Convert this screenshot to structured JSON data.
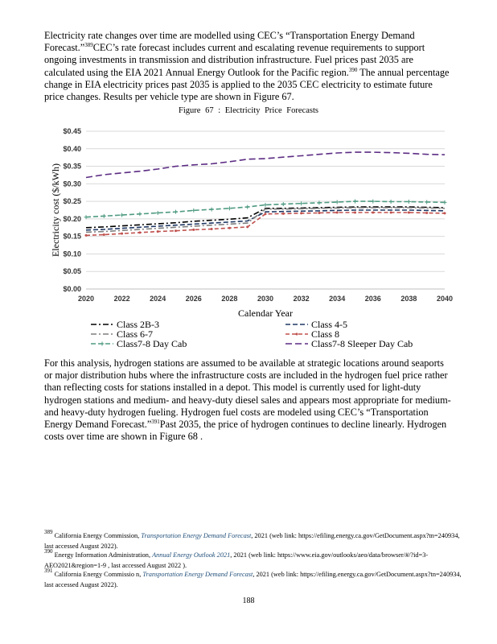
{
  "para1": {
    "t1": "Electricity rate changes over time are modelled using CEC’s “Transportation Energy Demand Forecast.”",
    "ref1": "389",
    "t2": "CEC’s rate forecast includes current and escalating revenue requirements to support ongoing investments in transmission and distribution infrastructure. Fuel prices past 2035 are calculated using the EIA 2021 Annual Energy Outlook for the Pacific region.",
    "ref2": "390",
    "t3": " The annual percentage change in EIA electricity prices past 2035 is applied to the 2035 CEC electricity to estimate future price changes. Results per vehicle type are shown in Figure 67."
  },
  "figure_caption": "Figure 67 : Electricity Price Forecasts",
  "chart_data": {
    "type": "line",
    "title": "",
    "xlabel": "Calendar Year",
    "ylabel": "Electricity cost ($/kWh)",
    "xlim": [
      2020,
      2040
    ],
    "ylim": [
      0,
      0.45
    ],
    "x_ticks": [
      "2020",
      "2022",
      "2024",
      "2026",
      "2028",
      "2030",
      "2032",
      "2034",
      "2036",
      "2038",
      "2040"
    ],
    "y_ticks": [
      "$0.00",
      "$0.05",
      "$0.10",
      "$0.15",
      "$0.20",
      "$0.25",
      "$0.30",
      "$0.35",
      "$0.40",
      "$0.45"
    ],
    "x": [
      2020,
      2021,
      2022,
      2023,
      2024,
      2025,
      2026,
      2027,
      2028,
      2029,
      2030,
      2031,
      2032,
      2033,
      2034,
      2035,
      2036,
      2037,
      2038,
      2039,
      2040
    ],
    "grid": "horizontal",
    "legend_position": "bottom",
    "series": [
      {
        "name": "Class 2B-3",
        "color": "#000000",
        "dash": "7 3 2 3",
        "marker": "none",
        "values": [
          0.175,
          0.177,
          0.18,
          0.183,
          0.186,
          0.189,
          0.193,
          0.196,
          0.199,
          0.203,
          0.23,
          0.23,
          0.231,
          0.232,
          0.233,
          0.234,
          0.234,
          0.234,
          0.234,
          0.233,
          0.232
        ]
      },
      {
        "name": "Class 4-5",
        "color": "#1f3864",
        "dash": "6 3",
        "marker": "none",
        "values": [
          0.168,
          0.17,
          0.173,
          0.176,
          0.179,
          0.182,
          0.185,
          0.188,
          0.191,
          0.194,
          0.22,
          0.221,
          0.222,
          0.223,
          0.224,
          0.225,
          0.225,
          0.225,
          0.225,
          0.224,
          0.223
        ]
      },
      {
        "name": "Class 6-7",
        "color": "#7f7f7f",
        "dash": "7 3 2 3",
        "marker": "none",
        "values": [
          0.162,
          0.164,
          0.167,
          0.17,
          0.173,
          0.176,
          0.179,
          0.182,
          0.185,
          0.188,
          0.228,
          0.228,
          0.229,
          0.23,
          0.231,
          0.232,
          0.232,
          0.232,
          0.232,
          0.231,
          0.23
        ]
      },
      {
        "name": "Class 8",
        "color": "#c0504d",
        "dash": "5 3",
        "marker": "dot",
        "values": [
          0.153,
          0.155,
          0.158,
          0.161,
          0.164,
          0.166,
          0.169,
          0.171,
          0.174,
          0.177,
          0.214,
          0.215,
          0.216,
          0.217,
          0.218,
          0.218,
          0.218,
          0.218,
          0.218,
          0.217,
          0.216
        ]
      },
      {
        "name": "Class7-8 Day Cab",
        "color": "#4e9a82",
        "dash": "6 3",
        "marker": "plus",
        "values": [
          0.205,
          0.208,
          0.211,
          0.214,
          0.217,
          0.22,
          0.224,
          0.227,
          0.23,
          0.234,
          0.24,
          0.242,
          0.244,
          0.246,
          0.248,
          0.25,
          0.25,
          0.249,
          0.249,
          0.248,
          0.247
        ]
      },
      {
        "name": "Class7-8 Sleeper Day Cab",
        "color": "#5b2c83",
        "dash": "8 4",
        "marker": "none",
        "values": [
          0.318,
          0.326,
          0.331,
          0.336,
          0.342,
          0.35,
          0.354,
          0.357,
          0.363,
          0.37,
          0.372,
          0.376,
          0.38,
          0.384,
          0.388,
          0.39,
          0.39,
          0.389,
          0.387,
          0.384,
          0.383
        ]
      }
    ]
  },
  "para2": {
    "t1": "For this analysis, hydrogen stations are assumed to be available at strategic locations around seaports or major distribution hubs where the infrastructure costs are included in the hydrogen fuel price rather than reflecting costs for stations installed in a depot. This model is currently used for light-duty hydrogen stations and medium- and heavy-duty diesel sales and appears most appropriate for medium- and heavy-duty hydrogen fueling. Hydrogen fuel costs are modeled using CEC’s “Transportation Energy Demand Forecast.”",
    "ref": "391",
    "t2": "Past 2035, the price of hydrogen continues to decline linearly. Hydrogen costs over time are shown in Figure 68 ."
  },
  "footnotes": [
    {
      "num": "389",
      "pre": " California Energy Commission, ",
      "title": "Transportation Energy Demand Forecast",
      "post": ", 2021 (web link: https://efiling.energy.ca.gov/GetDocument.aspx?tn=240934, last accessed August 2022)."
    },
    {
      "num": "390",
      "pre": " Energy Information Administration, ",
      "title": "Annual Energy Outlook 2021",
      "post": ", 2021 (web link: https://www.eia.gov/outlooks/aeo/data/browser/#/?id=3-AEO2021&region=1-9 , last accessed August 2022 )."
    },
    {
      "num": "391",
      "pre": " California Energy Commissio n, ",
      "title": "Transportation Energy Demand Forecast",
      "post": ", 2021 (web link: https://efiling.energy.ca.gov/GetDocument.aspx?tn=240934, last accessed August 2022)."
    }
  ],
  "page_number": "188"
}
